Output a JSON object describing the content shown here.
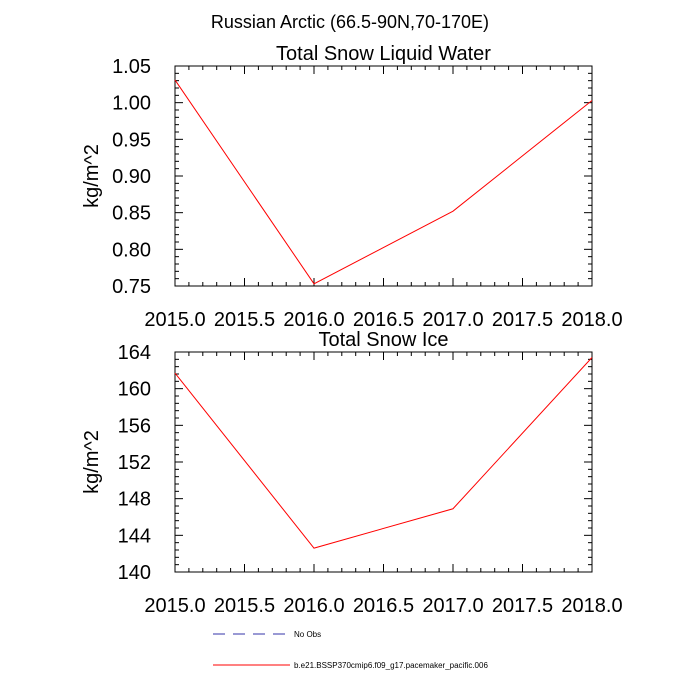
{
  "suptitle": "Russian Arctic (66.5-90N,70-170E)",
  "colors": {
    "series": "#ff0000",
    "no_obs": "#3333aa",
    "axis": "#000000"
  },
  "legend": [
    {
      "label": "No Obs",
      "style": "dashed",
      "color": "#3333aa"
    },
    {
      "label": "b.e21.BSSP370cmip6.f09_g17.pacemaker_pacific.006",
      "style": "solid",
      "color": "#ff0000"
    }
  ],
  "chart_data": [
    {
      "type": "line",
      "title": "Total Snow Liquid Water",
      "xlabel": "",
      "ylabel": "kg/m^2",
      "xlim": [
        2015.0,
        2018.0
      ],
      "ylim": [
        0.75,
        1.05
      ],
      "xticks": [
        "2015.0",
        "2015.5",
        "2016.0",
        "2016.5",
        "2017.0",
        "2017.5",
        "2018.0"
      ],
      "yticks": [
        "0.75",
        "0.80",
        "0.85",
        "0.90",
        "0.95",
        "1.00",
        "1.05"
      ],
      "x": [
        2015.0,
        2016.0,
        2017.0,
        2018.0
      ],
      "series": [
        {
          "name": "b.e21.BSSP370cmip6.f09_g17.pacemaker_pacific.006",
          "values": [
            1.031,
            0.753,
            0.852,
            1.003
          ]
        }
      ],
      "grid": false
    },
    {
      "type": "line",
      "title": "Total Snow Ice",
      "xlabel": "",
      "ylabel": "kg/m^2",
      "xlim": [
        2015.0,
        2018.0
      ],
      "ylim": [
        140,
        164
      ],
      "xticks": [
        "2015.0",
        "2015.5",
        "2016.0",
        "2016.5",
        "2017.0",
        "2017.5",
        "2018.0"
      ],
      "yticks": [
        "140",
        "144",
        "148",
        "152",
        "156",
        "160",
        "164"
      ],
      "x": [
        2015.0,
        2016.0,
        2017.0,
        2018.0
      ],
      "series": [
        {
          "name": "b.e21.BSSP370cmip6.f09_g17.pacemaker_pacific.006",
          "values": [
            161.7,
            142.6,
            146.9,
            163.4
          ]
        }
      ],
      "grid": false
    }
  ]
}
